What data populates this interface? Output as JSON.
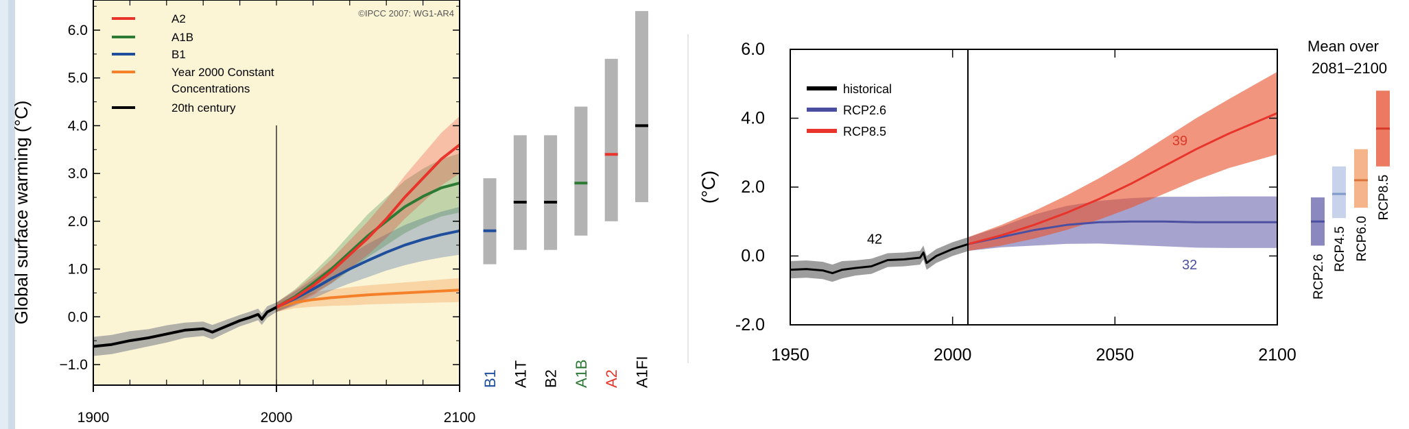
{
  "chart_data": [
    {
      "type": "line",
      "credit": "©IPCC 2007: WG1-AR4",
      "ylabel": "Global surface warming (°C)",
      "xlim": [
        1900,
        2100
      ],
      "ylim": [
        -1.5,
        6.5
      ],
      "x_ticks": [
        "1900",
        "2000",
        "2100"
      ],
      "y_ticks": [
        "−1.0",
        "0.0",
        "1.0",
        "2.0",
        "3.0",
        "4.0",
        "5.0",
        "6.0"
      ],
      "background": "#fbf5d6",
      "legend": {
        "position": "top-left",
        "items": [
          "A2",
          "A1B",
          "B1",
          "Year 2000 Constant",
          "Concentrations",
          "20th century"
        ]
      },
      "series": [
        {
          "name": "20th century",
          "color": "#000000",
          "x": [
            1900,
            1910,
            1920,
            1930,
            1940,
            1950,
            1960,
            1965,
            1970,
            1980,
            1985,
            1990,
            1992,
            1995,
            2000
          ],
          "y": [
            -0.62,
            -0.58,
            -0.5,
            -0.44,
            -0.36,
            -0.28,
            -0.25,
            -0.32,
            -0.24,
            -0.08,
            -0.02,
            0.05,
            -0.05,
            0.1,
            0.2
          ],
          "band": [
            0.2,
            0.2,
            0.2,
            0.18,
            0.18,
            0.16,
            0.15,
            0.15,
            0.14,
            0.12,
            0.12,
            0.12,
            0.12,
            0.12,
            0.1
          ]
        },
        {
          "name": "Year 2000 Constant Concentrations",
          "color": "#f5802a",
          "x": [
            2000,
            2010,
            2020,
            2030,
            2040,
            2050,
            2060,
            2070,
            2080,
            2090,
            2100
          ],
          "y": [
            0.2,
            0.3,
            0.36,
            0.4,
            0.43,
            0.46,
            0.48,
            0.5,
            0.52,
            0.54,
            0.56
          ],
          "band": [
            0.1,
            0.12,
            0.15,
            0.17,
            0.19,
            0.2,
            0.21,
            0.22,
            0.23,
            0.24,
            0.25
          ]
        },
        {
          "name": "B1",
          "color": "#1f4e9c",
          "x": [
            2000,
            2010,
            2020,
            2030,
            2040,
            2050,
            2060,
            2070,
            2080,
            2090,
            2100
          ],
          "y": [
            0.2,
            0.38,
            0.58,
            0.8,
            1.0,
            1.18,
            1.35,
            1.5,
            1.62,
            1.72,
            1.8
          ],
          "band": [
            0.1,
            0.15,
            0.2,
            0.25,
            0.3,
            0.35,
            0.38,
            0.42,
            0.45,
            0.48,
            0.5
          ]
        },
        {
          "name": "A1B",
          "color": "#2c7a34",
          "x": [
            2000,
            2010,
            2020,
            2030,
            2040,
            2050,
            2060,
            2070,
            2080,
            2090,
            2100
          ],
          "y": [
            0.2,
            0.42,
            0.7,
            1.0,
            1.35,
            1.7,
            2.0,
            2.3,
            2.52,
            2.7,
            2.8
          ],
          "band": [
            0.1,
            0.15,
            0.22,
            0.3,
            0.38,
            0.45,
            0.5,
            0.55,
            0.58,
            0.6,
            0.62
          ]
        },
        {
          "name": "A2",
          "color": "#e8342a",
          "x": [
            2000,
            2010,
            2020,
            2030,
            2040,
            2050,
            2060,
            2070,
            2080,
            2090,
            2100
          ],
          "y": [
            0.2,
            0.4,
            0.65,
            0.95,
            1.3,
            1.65,
            2.05,
            2.5,
            2.9,
            3.3,
            3.6
          ],
          "band": [
            0.1,
            0.15,
            0.2,
            0.25,
            0.3,
            0.35,
            0.4,
            0.45,
            0.5,
            0.55,
            0.6
          ]
        }
      ]
    },
    {
      "type": "bar",
      "title": "",
      "categories": [
        "B1",
        "A1T",
        "B2",
        "A1B",
        "A2",
        "A1FI"
      ],
      "low": [
        1.1,
        1.4,
        1.4,
        1.7,
        2.0,
        2.4
      ],
      "high": [
        2.9,
        3.8,
        3.8,
        4.4,
        5.4,
        6.4
      ],
      "best": [
        1.8,
        2.4,
        2.4,
        2.8,
        3.4,
        4.0
      ],
      "label_colors": [
        "#1f4e9c",
        "#000000",
        "#000000",
        "#2c7a34",
        "#e8342a",
        "#000000"
      ],
      "best_colors": [
        "#1f4e9c",
        "#000000",
        "#000000",
        "#2c7a34",
        "#e8342a",
        "#000000"
      ]
    },
    {
      "type": "line",
      "ylabel": "(°C)",
      "xlim": [
        1950,
        2100
      ],
      "ylim": [
        -2,
        6
      ],
      "x_ticks": [
        "1950",
        "2000",
        "2050",
        "2100"
      ],
      "y_ticks": [
        "-2.0",
        "0.0",
        "2.0",
        "4.0",
        "6.0"
      ],
      "legend": {
        "position": "top-left",
        "items": [
          {
            "name": "historical",
            "color": "#000000"
          },
          {
            "name": "RCP2.6",
            "color": "#4b4fa2"
          },
          {
            "name": "RCP8.5",
            "color": "#e8342a"
          }
        ]
      },
      "annotations": [
        {
          "text": "42",
          "x": 1976,
          "y": 0.5,
          "color": "#000000"
        },
        {
          "text": "39",
          "x": 2070,
          "y": 3.35,
          "color": "#d8392a"
        },
        {
          "text": "32",
          "x": 2073,
          "y": -0.25,
          "color": "#4b4fa2"
        }
      ],
      "series": [
        {
          "name": "historical",
          "color": "#000000",
          "x": [
            1950,
            1955,
            1960,
            1963,
            1966,
            1970,
            1975,
            1980,
            1985,
            1990,
            1991,
            1992,
            1995,
            2000,
            2005
          ],
          "y": [
            -0.4,
            -0.38,
            -0.42,
            -0.5,
            -0.4,
            -0.35,
            -0.3,
            -0.12,
            -0.1,
            -0.05,
            0.1,
            -0.2,
            0.0,
            0.2,
            0.35
          ],
          "band": [
            0.25,
            0.25,
            0.25,
            0.25,
            0.25,
            0.22,
            0.22,
            0.2,
            0.2,
            0.2,
            0.2,
            0.2,
            0.2,
            0.2,
            0.2
          ]
        },
        {
          "name": "RCP2.6",
          "color": "#4b4fa2",
          "x": [
            2005,
            2015,
            2025,
            2035,
            2045,
            2055,
            2065,
            2075,
            2085,
            2100
          ],
          "y": [
            0.35,
            0.55,
            0.75,
            0.9,
            0.98,
            1.0,
            1.0,
            0.98,
            0.98,
            0.98
          ],
          "band": [
            0.2,
            0.3,
            0.45,
            0.55,
            0.62,
            0.68,
            0.72,
            0.74,
            0.75,
            0.75
          ]
        },
        {
          "name": "RCP8.5",
          "color": "#e8342a",
          "x": [
            2005,
            2015,
            2025,
            2035,
            2045,
            2055,
            2065,
            2075,
            2085,
            2100
          ],
          "y": [
            0.35,
            0.6,
            0.9,
            1.25,
            1.65,
            2.1,
            2.6,
            3.1,
            3.55,
            4.15
          ],
          "band": [
            0.2,
            0.3,
            0.4,
            0.5,
            0.6,
            0.7,
            0.8,
            0.9,
            1.0,
            1.2
          ]
        }
      ]
    },
    {
      "type": "bar",
      "title": "Mean over 2081–2100",
      "categories": [
        "RCP2.6",
        "RCP4.5",
        "RCP6.0",
        "RCP8.5"
      ],
      "low": [
        0.3,
        1.1,
        1.4,
        2.6
      ],
      "high": [
        1.7,
        2.6,
        3.1,
        4.8
      ],
      "best": [
        1.0,
        1.8,
        2.2,
        3.7
      ],
      "fill_colors": [
        "#8a88be",
        "#c6d3ea",
        "#f6b48b",
        "#ec7a61"
      ],
      "best_colors": [
        "#4b4fa2",
        "#7f98c8",
        "#d9733c",
        "#d8392a"
      ]
    }
  ]
}
